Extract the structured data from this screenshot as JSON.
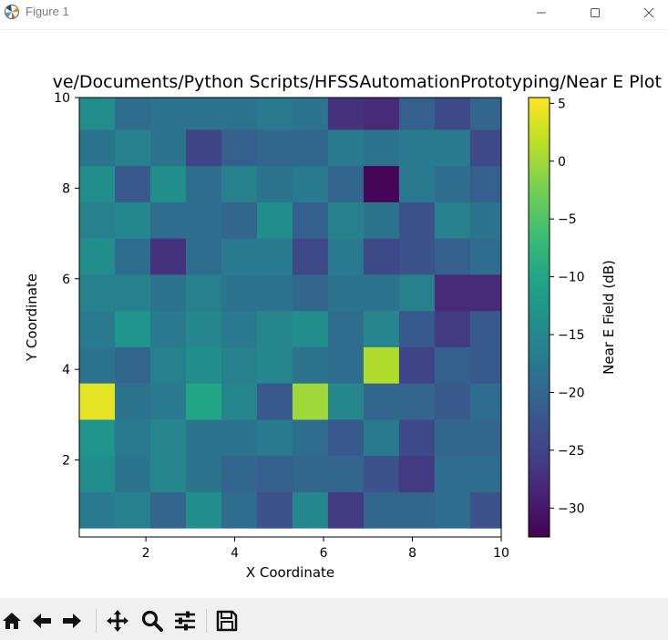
{
  "window": {
    "title": "Figure 1",
    "minimize_icon": "minimize-icon",
    "maximize_icon": "maximize-icon",
    "close_icon": "close-icon"
  },
  "toolbar": {
    "buttons": [
      {
        "name": "home-icon"
      },
      {
        "name": "back-icon"
      },
      {
        "name": "forward-icon"
      },
      {
        "name": "pan-icon"
      },
      {
        "name": "zoom-icon"
      },
      {
        "name": "configure-subplots-icon"
      },
      {
        "name": "save-icon"
      }
    ]
  },
  "chart_data": {
    "type": "heatmap",
    "title": "ve/Documents/Python Scripts/HFSSAutomationPrototyping/Near E Plot",
    "xlabel": "X Coordinate",
    "ylabel": "Y Coordinate",
    "colorbar_label": "Near E Field (dB)",
    "colormap": "viridis",
    "x_centers": [
      0.9,
      1.7,
      2.5,
      3.3,
      4.1,
      4.9,
      5.7,
      6.5,
      7.3,
      8.1,
      8.9,
      9.7
    ],
    "y_centers": [
      0.9,
      1.7,
      2.5,
      3.3,
      4.1,
      4.9,
      5.7,
      6.5,
      7.3,
      8.1,
      8.9,
      9.7
    ],
    "xlim": [
      0.5,
      10
    ],
    "ylim": [
      0.3,
      10
    ],
    "xticks": [
      2,
      4,
      6,
      8,
      10
    ],
    "yticks": [
      2,
      4,
      6,
      8,
      10
    ],
    "vmin": -32.5,
    "vmax": 5.5,
    "colorbar_ticks": [
      5,
      0,
      -5,
      -10,
      -15,
      -20,
      -25,
      -30
    ],
    "colorbar_tick_labels": [
      "5",
      "0",
      "−5",
      "−10",
      "−15",
      "−20",
      "−25",
      "−30"
    ],
    "values": [
      [
        -17,
        -16,
        -20,
        -14,
        -19,
        -23,
        -15,
        -26,
        -20,
        -20,
        -19,
        -23
      ],
      [
        -14,
        -18,
        -15,
        -18,
        -20,
        -21,
        -20,
        -20,
        -23,
        -26,
        -19,
        -19
      ],
      [
        -13,
        -17,
        -15,
        -18,
        -18,
        -17,
        -19,
        -22,
        -17,
        -24,
        -20,
        -20
      ],
      [
        4,
        -18,
        -17,
        -10,
        -15,
        -22,
        0,
        -15,
        -20,
        -20,
        -22,
        -19
      ],
      [
        -18,
        -20,
        -16,
        -14,
        -16,
        -15,
        -18,
        -19,
        1,
        -25,
        -21,
        -22
      ],
      [
        -17,
        -13,
        -17,
        -15,
        -17,
        -15,
        -14,
        -19,
        -15,
        -22,
        -26,
        -22
      ],
      [
        -16,
        -16,
        -18,
        -16,
        -18,
        -18,
        -20,
        -18,
        -18,
        -16,
        -28,
        -28
      ],
      [
        -14,
        -19,
        -27,
        -19,
        -17,
        -17,
        -24,
        -17,
        -24,
        -23,
        -21,
        -19
      ],
      [
        -16,
        -15,
        -19,
        -19,
        -20,
        -14,
        -21,
        -16,
        -18,
        -23,
        -16,
        -18
      ],
      [
        -14,
        -22,
        -14,
        -19,
        -16,
        -18,
        -17,
        -20,
        -32,
        -17,
        -19,
        -21
      ],
      [
        -18,
        -16,
        -18,
        -25,
        -21,
        -20,
        -20,
        -17,
        -18,
        -17,
        -17,
        -24
      ],
      [
        -14,
        -19,
        -18,
        -18,
        -18,
        -17,
        -18,
        -27,
        -28,
        -21,
        -24,
        -20
      ]
    ]
  }
}
